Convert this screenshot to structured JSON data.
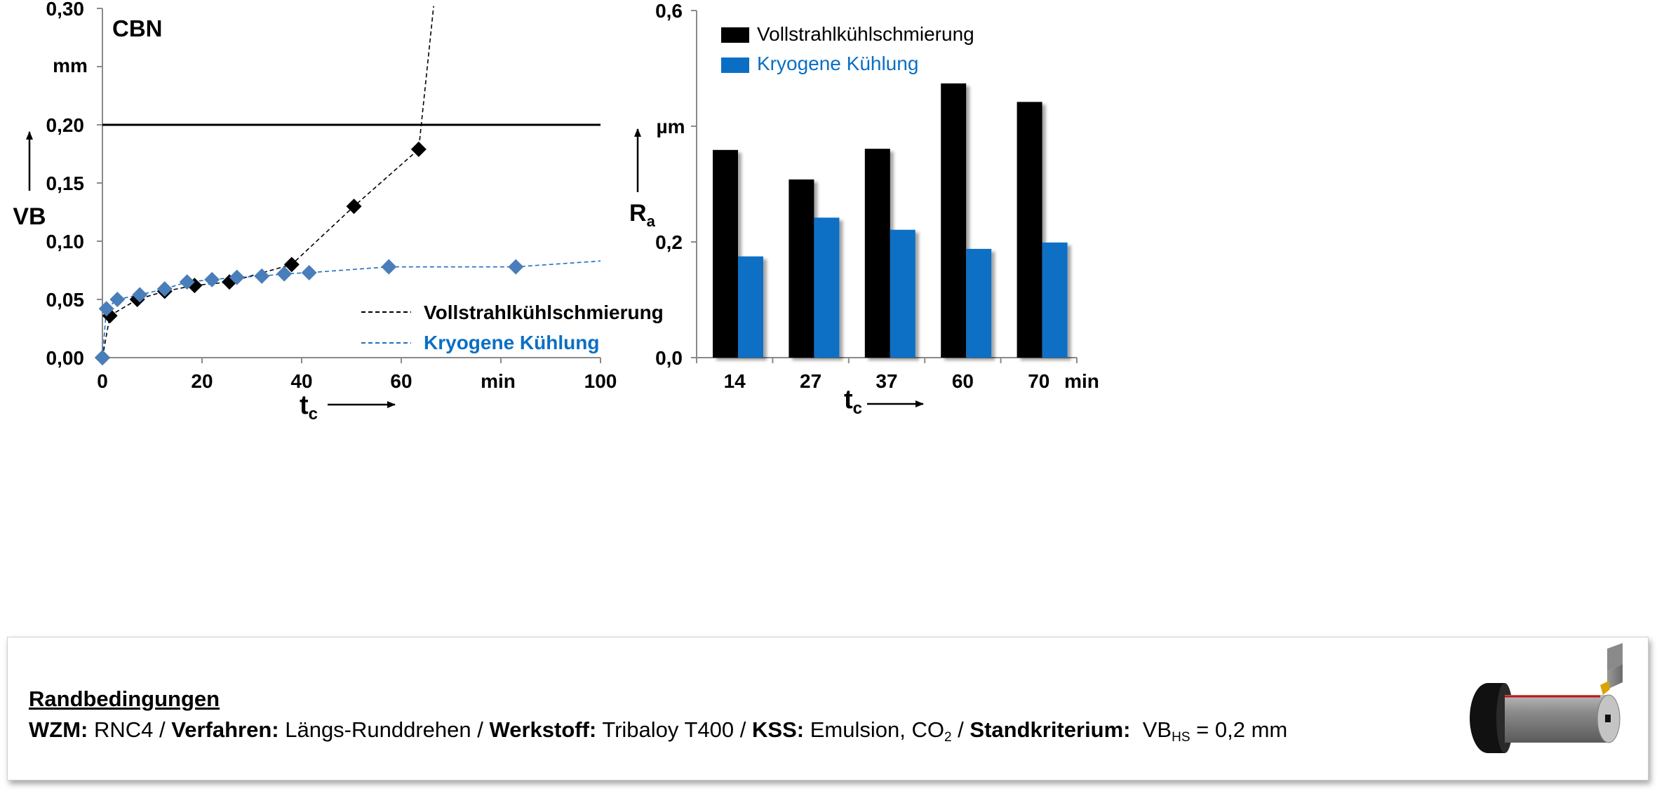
{
  "chart_data": [
    {
      "type": "line",
      "title": "CBN",
      "xlabel": "t",
      "xlabel_sub": "c",
      "x_unit": "min",
      "ylabel": "VB",
      "y_unit": "mm",
      "xlim": [
        0,
        100
      ],
      "ylim": [
        0,
        0.3
      ],
      "x_ticks": [
        "0",
        "20",
        "40",
        "60",
        "100"
      ],
      "y_ticks": [
        "0,00",
        "0,05",
        "0,10",
        "0,15",
        "0,20",
        "0,30"
      ],
      "x_tick_values": [
        0,
        20,
        40,
        60,
        100
      ],
      "y_tick_values": [
        0,
        0.05,
        0.1,
        0.15,
        0.2,
        0.3
      ],
      "threshold": 0.2,
      "series": [
        {
          "name": "Vollstrahlkühlschmierung",
          "color": "#000000",
          "points": [
            [
              0,
              0
            ],
            [
              1.5,
              0.036
            ],
            [
              7,
              0.05
            ],
            [
              12.5,
              0.057
            ],
            [
              18.5,
              0.062
            ],
            [
              25.5,
              0.065
            ],
            [
              38,
              0.08
            ],
            [
              50.5,
              0.13
            ],
            [
              63.5,
              0.179
            ]
          ],
          "extension": [
            [
              63.5,
              0.179
            ],
            [
              66.5,
              0.302
            ]
          ]
        },
        {
          "name": "Kryogene Kühlung",
          "color": "#4a7ebb",
          "points": [
            [
              0,
              0
            ],
            [
              0.8,
              0.042
            ],
            [
              3,
              0.05
            ],
            [
              7.5,
              0.054
            ],
            [
              12.5,
              0.059
            ],
            [
              17,
              0.065
            ],
            [
              22,
              0.067
            ],
            [
              27,
              0.069
            ],
            [
              32,
              0.07
            ],
            [
              36.5,
              0.072
            ],
            [
              41.5,
              0.073
            ],
            [
              57.5,
              0.078
            ],
            [
              83,
              0.078
            ]
          ],
          "extension": [
            [
              83,
              0.078
            ],
            [
              100,
              0.083
            ]
          ]
        }
      ]
    },
    {
      "type": "bar",
      "xlabel": "t",
      "xlabel_sub": "c",
      "x_unit": "min",
      "ylabel": "R",
      "ylabel_sub": "a",
      "y_unit": "µm",
      "ylim": [
        0,
        0.6
      ],
      "y_ticks": [
        "0,0",
        "0,2",
        "0,6"
      ],
      "y_tick_values": [
        0,
        0.2,
        0.6
      ],
      "categories": [
        "14",
        "27",
        "37",
        "60",
        "70"
      ],
      "series": [
        {
          "name": "Vollstrahlkühlschmierung",
          "color": "#000000",
          "values": [
            0.359,
            0.308,
            0.361,
            0.474,
            0.442
          ]
        },
        {
          "name": "Kryogene Kühlung",
          "color": "#0a6fc4",
          "values": [
            0.175,
            0.242,
            0.221,
            0.188,
            0.199
          ]
        }
      ]
    }
  ],
  "conditions": {
    "title": "Randbedingungen",
    "wzm_label": "WZM:",
    "wzm_value": "RNC4",
    "verfahren_label": "Verfahren:",
    "verfahren_value": "Längs-Runddrehen",
    "werkstoff_label": "Werkstoff:",
    "werkstoff_value": "Tribaloy T400",
    "kss_label": "KSS:",
    "kss_value": "Emulsion, CO",
    "kss_sub": "2",
    "kriterium_label": "Standkriterium:",
    "kriterium_var": "VB",
    "kriterium_sub": "HS",
    "kriterium_value": "= 0,2 mm",
    "separator": "/"
  }
}
